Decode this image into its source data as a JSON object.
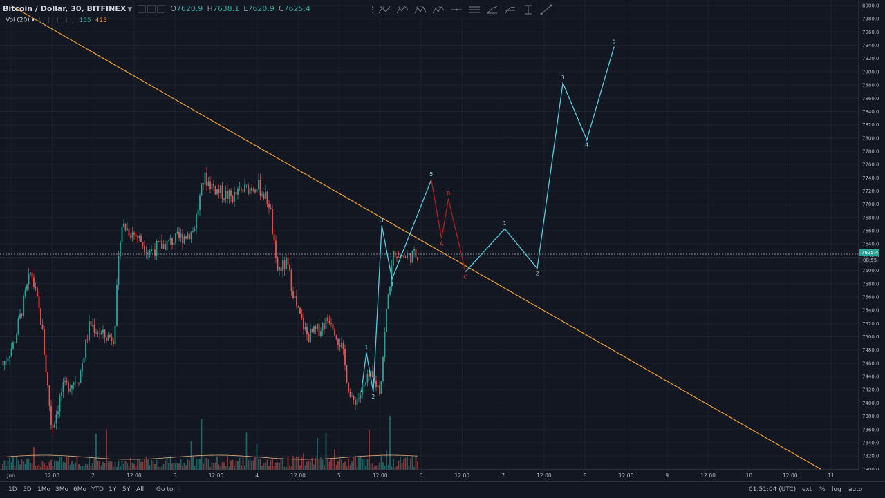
{
  "legend": {
    "symbol": "Bitcoin / Dollar, 30, BITFINEX",
    "open": "7620.9",
    "high": "7638.1",
    "low": "7620.9",
    "close": "7625.4",
    "open_label": "O",
    "high_label": "H",
    "low_label": "L",
    "close_label": "C"
  },
  "volume": {
    "label": "Vol (20)",
    "value1": "155",
    "value2": "425"
  },
  "toolbar": {
    "tools": [
      "grip-icon",
      "abcd-pattern-icon",
      "elliott-impulse-icon",
      "elliott-triangle-icon",
      "elliott-wave-icon",
      "horizontal-line-icon",
      "pitchfork-icon",
      "trend-angle-icon",
      "fib-retracement-icon",
      "date-range-icon",
      "trend-line-icon"
    ]
  },
  "price_axis": {
    "labels": [
      "8000.0",
      "7980.0",
      "7960.0",
      "7940.0",
      "7920.0",
      "7900.0",
      "7880.0",
      "7860.0",
      "7840.0",
      "7820.0",
      "7800.0",
      "7780.0",
      "7760.0",
      "7740.0",
      "7720.0",
      "7700.0",
      "7680.0",
      "7660.0",
      "7640.0",
      "7620.0",
      "7600.0",
      "7580.0",
      "7560.0",
      "7540.0",
      "7520.0",
      "7500.0",
      "7480.0",
      "7460.0",
      "7440.0",
      "7420.0",
      "7400.0",
      "7380.0",
      "7360.0",
      "7340.0",
      "7320.0",
      "7300.0"
    ],
    "current_price": "7625.4",
    "countdown": "08:55"
  },
  "time_axis": {
    "labels": [
      "Jun",
      "12:00",
      "2",
      "12:00",
      "3",
      "12:00",
      "4",
      "12:00",
      "5",
      "12:00",
      "6",
      "12:00",
      "7",
      "12:00",
      "8",
      "12:00",
      "9",
      "12:00",
      "10",
      "12:00",
      "11"
    ]
  },
  "waves": {
    "cyan_labels": [
      "1",
      "2",
      "3",
      "4",
      "5",
      "1",
      "2",
      "3",
      "4",
      "5"
    ],
    "red_labels": [
      "A",
      "B",
      "C"
    ]
  },
  "bottom": {
    "timeframes": [
      "1D",
      "5D",
      "1Mo",
      "3Mo",
      "6Mo",
      "YTD",
      "1Y",
      "5Y",
      "All"
    ],
    "goto": "Go to...",
    "clock": "01:51:04 (UTC)",
    "ext": "ext",
    "percent": "%",
    "log": "log",
    "auto": "auto"
  },
  "colors": {
    "background": "#131722",
    "up": "#26a69a",
    "down": "#ef5350",
    "trendline": "#f0a030",
    "wave_cyan": "#4dd0e1",
    "wave_red": "#b71c1c"
  },
  "chart_data": {
    "type": "candlestick",
    "y_range": [
      7300,
      8000
    ],
    "trendline": {
      "from": {
        "x": "Jun 1 00:00",
        "y": 8000
      },
      "to": {
        "x": "Jun 10 21:00",
        "y": 7300
      }
    },
    "wave_points_cyan": [
      {
        "t": "Jun 5 06:30",
        "y": 7416,
        "label": ""
      },
      {
        "t": "Jun 5 08:00",
        "y": 7476,
        "label": "1"
      },
      {
        "t": "Jun 5 10:00",
        "y": 7417,
        "label": "2"
      },
      {
        "t": "Jun 5 12:30",
        "y": 7668,
        "label": "3"
      },
      {
        "t": "Jun 5 15:30",
        "y": 7587,
        "label": "4"
      },
      {
        "t": "Jun 6 03:00",
        "y": 7737,
        "label": "5"
      }
    ],
    "wave_points_red": [
      {
        "t": "Jun 6 03:00",
        "y": 7737,
        "label": ""
      },
      {
        "t": "Jun 6 06:00",
        "y": 7648,
        "label": "A"
      },
      {
        "t": "Jun 6 08:00",
        "y": 7708,
        "label": "B"
      },
      {
        "t": "Jun 6 13:00",
        "y": 7598,
        "label": "C"
      }
    ],
    "wave_points_cyan2": [
      {
        "t": "Jun 6 13:00",
        "y": 7598,
        "label": ""
      },
      {
        "t": "Jun 7 00:30",
        "y": 7663,
        "label": "1"
      },
      {
        "t": "Jun 7 10:00",
        "y": 7603,
        "label": "2"
      },
      {
        "t": "Jun 7 17:30",
        "y": 7883,
        "label": "3"
      },
      {
        "t": "Jun 8 00:30",
        "y": 7797,
        "label": "4"
      },
      {
        "t": "Jun 8 08:30",
        "y": 7938,
        "label": "5"
      }
    ]
  }
}
